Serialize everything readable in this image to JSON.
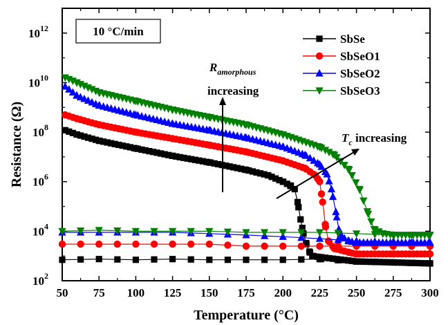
{
  "chart_data": {
    "type": "scatter",
    "xlabel": "Temperature (°C)",
    "ylabel": "Resistance (Ω)",
    "xlim": [
      50,
      300
    ],
    "ylim": [
      100,
      10000000000000.0
    ],
    "yscale": "log",
    "xticks": [
      "50",
      "75",
      "100",
      "125",
      "150",
      "175",
      "200",
      "225",
      "250",
      "275",
      "300"
    ],
    "ytick_bases": [
      "10",
      "10",
      "10",
      "10",
      "10",
      "10"
    ],
    "ytick_exps": [
      "2",
      "4",
      "6",
      "8",
      "10",
      "12"
    ],
    "rate_label": "10 °C/min",
    "annotations": {
      "ramorph_letter": "R",
      "ramorph_sub": "amorphous",
      "ramorph_text": "increasing",
      "tc_letter": "T",
      "tc_sub": "c",
      "tc_text": " increasing"
    },
    "legend_position": "top-right",
    "grid": false,
    "series": [
      {
        "name": "SbSe",
        "color": "#000000",
        "marker": "square",
        "heating": [
          [
            52,
            120000000.0
          ],
          [
            60,
            80000000.0
          ],
          [
            75,
            45000000.0
          ],
          [
            100,
            22000000.0
          ],
          [
            125,
            11000000.0
          ],
          [
            150,
            6000000.0
          ],
          [
            175,
            3000000.0
          ],
          [
            190,
            1800000.0
          ],
          [
            200,
            1000000.0
          ],
          [
            205,
            700000.0
          ],
          [
            208,
            500000.0
          ],
          [
            210,
            150000.0
          ],
          [
            212,
            30000.0
          ],
          [
            214,
            8000.0
          ],
          [
            216,
            3000.0
          ],
          [
            218,
            1500.0
          ],
          [
            220,
            1000.0
          ],
          [
            225,
            900.0
          ],
          [
            250,
            600.0
          ],
          [
            275,
            550.0
          ],
          [
            300,
            500.0
          ]
        ],
        "cooling": [
          [
            300,
            500.0
          ],
          [
            250,
            600.0
          ],
          [
            226,
            750.0
          ],
          [
            200,
            700.0
          ],
          [
            175,
            700.0
          ],
          [
            150,
            700.0
          ],
          [
            125,
            750.0
          ],
          [
            100,
            700.0
          ],
          [
            75,
            750.0
          ],
          [
            50,
            700.0
          ]
        ]
      },
      {
        "name": "SbSeO1",
        "color": "#ff0000",
        "marker": "circle",
        "heating": [
          [
            52,
            500000000.0
          ],
          [
            60,
            350000000.0
          ],
          [
            75,
            200000000.0
          ],
          [
            100,
            100000000.0
          ],
          [
            125,
            55000000.0
          ],
          [
            150,
            30000000.0
          ],
          [
            175,
            16000000.0
          ],
          [
            200,
            7000000.0
          ],
          [
            215,
            3500000.0
          ],
          [
            222,
            1800000.0
          ],
          [
            225,
            1000000.0
          ],
          [
            227,
            150000.0
          ],
          [
            229,
            15000.0
          ],
          [
            231,
            4000.0
          ],
          [
            235,
            2000.0
          ],
          [
            245,
            1400.0
          ],
          [
            250,
            1200.0
          ],
          [
            275,
            1200.0
          ],
          [
            300,
            1200.0
          ]
        ],
        "cooling": [
          [
            300,
            2500.0
          ],
          [
            275,
            2500.0
          ],
          [
            250,
            2500.0
          ],
          [
            225,
            2500.0
          ],
          [
            200,
            2500.0
          ],
          [
            175,
            2500.0
          ],
          [
            150,
            3000.0
          ],
          [
            125,
            3000.0
          ],
          [
            100,
            3000.0
          ],
          [
            75,
            3000.0
          ],
          [
            50,
            3000.0
          ]
        ]
      },
      {
        "name": "SbSeO2",
        "color": "#0000ff",
        "marker": "triangle-up",
        "heating": [
          [
            52,
            7000000000.0
          ],
          [
            60,
            3000000000.0
          ],
          [
            75,
            1200000000.0
          ],
          [
            100,
            500000000.0
          ],
          [
            125,
            220000000.0
          ],
          [
            150,
            120000000.0
          ],
          [
            175,
            60000000.0
          ],
          [
            200,
            26000000.0
          ],
          [
            215,
            12000000.0
          ],
          [
            225,
            5000000.0
          ],
          [
            230,
            2000000.0
          ],
          [
            233,
            500000.0
          ],
          [
            236,
            60000.0
          ],
          [
            238,
            12000.0
          ],
          [
            240,
            6000.0
          ],
          [
            245,
            4000.0
          ],
          [
            250,
            3500.0
          ],
          [
            275,
            3500.0
          ],
          [
            300,
            3500.0
          ]
        ],
        "cooling": [
          [
            300,
            3500.0
          ],
          [
            250,
            4000.0
          ],
          [
            225,
            5000.0
          ],
          [
            200,
            6000.0
          ],
          [
            175,
            7000.0
          ],
          [
            150,
            8000.0
          ],
          [
            125,
            9000.0
          ],
          [
            100,
            9000.0
          ],
          [
            75,
            9000.0
          ],
          [
            50,
            9000.0
          ]
        ]
      },
      {
        "name": "SbSeO3",
        "color": "#008000",
        "marker": "triangle-down",
        "heating": [
          [
            52,
            16000000000.0
          ],
          [
            60,
            10000000000.0
          ],
          [
            75,
            4000000000.0
          ],
          [
            100,
            1800000000.0
          ],
          [
            125,
            800000000.0
          ],
          [
            150,
            400000000.0
          ],
          [
            175,
            200000000.0
          ],
          [
            200,
            80000000.0
          ],
          [
            225,
            25000000.0
          ],
          [
            235,
            12000000.0
          ],
          [
            245,
            3000000.0
          ],
          [
            252,
            500000.0
          ],
          [
            258,
            50000.0
          ],
          [
            262,
            12000.0
          ],
          [
            268,
            8000.0
          ],
          [
            275,
            7000.0
          ],
          [
            300,
            7000.0
          ]
        ],
        "cooling": [
          [
            300,
            7000.0
          ],
          [
            275,
            7000.0
          ],
          [
            250,
            8000.0
          ],
          [
            225,
            9000.0
          ],
          [
            200,
            9000.0
          ],
          [
            175,
            9000.0
          ],
          [
            150,
            10000.0
          ],
          [
            125,
            10000.0
          ],
          [
            100,
            10000.0
          ],
          [
            75,
            11000.0
          ],
          [
            50,
            10000.0
          ]
        ]
      }
    ]
  }
}
